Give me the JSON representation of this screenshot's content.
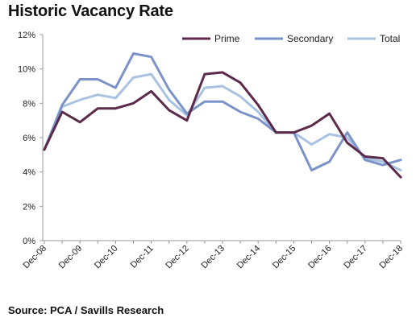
{
  "title": "Historic Vacancy Rate",
  "source": "Source: PCA / Savills Research",
  "chart_data": {
    "type": "line",
    "title": "Historic Vacancy Rate",
    "xlabel": "",
    "ylabel": "",
    "ylim": [
      0,
      12
    ],
    "yticks": [
      "0%",
      "2%",
      "4%",
      "6%",
      "8%",
      "10%",
      "12%"
    ],
    "xticks": [
      "Dec-08",
      "Dec-09",
      "Dec-10",
      "Dec-11",
      "Dec-12",
      "Dec-13",
      "Dec-14",
      "Dec-15",
      "Dec-16",
      "Dec-17",
      "Dec-18"
    ],
    "grid": false,
    "legend_position": "top-right",
    "series": [
      {
        "name": "Prime",
        "color": "#5b2a4a",
        "values": [
          5.3,
          7.5,
          6.9,
          7.7,
          7.7,
          8.0,
          8.7,
          7.6,
          7.0,
          9.7,
          9.8,
          9.2,
          7.9,
          6.3,
          6.3,
          6.7,
          7.4,
          5.7,
          4.9,
          4.8,
          3.7
        ]
      },
      {
        "name": "Secondary",
        "color": "#7b93c8",
        "values": [
          5.3,
          7.9,
          9.4,
          9.4,
          8.9,
          10.9,
          10.7,
          8.8,
          7.4,
          8.1,
          8.1,
          7.5,
          7.1,
          6.3,
          6.3,
          4.1,
          4.6,
          6.3,
          4.7,
          4.4,
          4.7
        ]
      },
      {
        "name": "Total",
        "color": "#a9c2e2",
        "values": [
          5.3,
          7.8,
          8.2,
          8.5,
          8.3,
          9.5,
          9.7,
          8.2,
          7.3,
          8.9,
          9.0,
          8.4,
          7.5,
          6.3,
          6.3,
          5.6,
          6.2,
          6.0,
          4.8,
          4.6,
          4.1
        ]
      }
    ]
  }
}
